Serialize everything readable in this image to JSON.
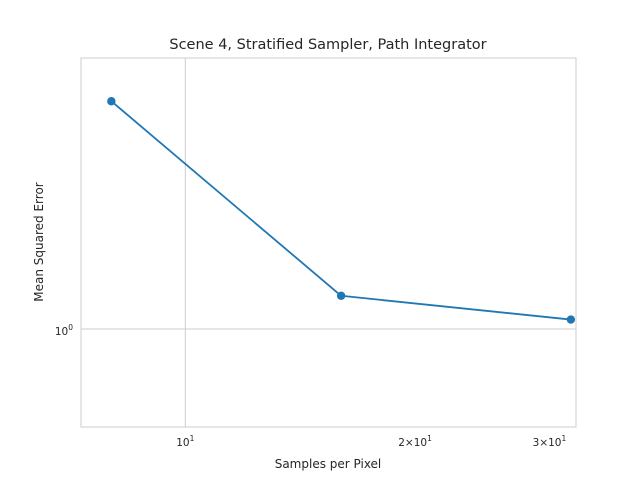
{
  "chart_data": {
    "type": "line",
    "title": "Scene 4, Stratified Sampler, Path Integrator",
    "xlabel": "Samples per Pixel",
    "ylabel": "Mean Squared Error",
    "xscale": "log",
    "yscale": "log",
    "xlim": [
      7.3,
      32.5
    ],
    "ylim": [
      0.84,
      1.62
    ],
    "grid": true,
    "x_ticks": [
      {
        "value": 10,
        "base": "10",
        "exp": "1"
      },
      {
        "value": 20,
        "base": "2×10",
        "exp": "1"
      },
      {
        "value": 30,
        "base": "3×10",
        "exp": "1"
      }
    ],
    "y_ticks": [
      {
        "value": 1,
        "base": "10",
        "exp": "0"
      }
    ],
    "series": [
      {
        "color": "#1f77b4",
        "x": [
          8,
          16,
          32
        ],
        "y": [
          1.5,
          1.061,
          1.017
        ]
      }
    ]
  }
}
